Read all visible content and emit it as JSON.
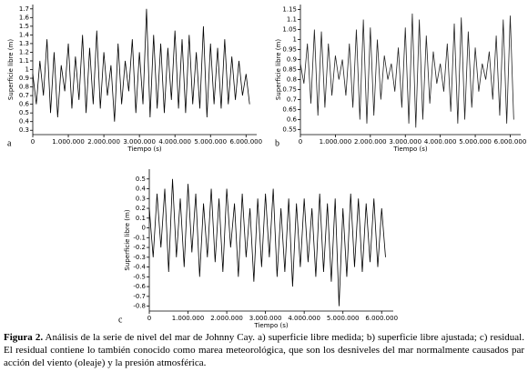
{
  "chart_data": [
    {
      "type": "line",
      "panel": "a",
      "xlabel": "Tiempo (s)",
      "ylabel": "Superficie libre (m)",
      "color": "#000000",
      "xlim": [
        0,
        6300000
      ],
      "ylim": [
        0.25,
        1.75
      ],
      "xticks": [
        0,
        {
          "value": 1000000,
          "label": "1.000.000"
        },
        {
          "value": 2000000,
          "label": "2.000.000"
        },
        {
          "value": 3000000,
          "label": "3.000.000"
        },
        {
          "value": 4000000,
          "label": "4.000.000"
        },
        {
          "value": 5000000,
          "label": "5.000.000"
        },
        {
          "value": 6000000,
          "label": "6.000.000"
        }
      ],
      "yticks": [
        0.3,
        0.4,
        0.5,
        0.6,
        0.7,
        0.8,
        0.9,
        1,
        1.1,
        1.2,
        1.3,
        1.4,
        1.5,
        1.6,
        1.7
      ],
      "x": [
        0,
        100000,
        200000,
        300000,
        400000,
        500000,
        600000,
        700000,
        800000,
        900000,
        1000000,
        1100000,
        1200000,
        1300000,
        1400000,
        1500000,
        1600000,
        1700000,
        1800000,
        1900000,
        2000000,
        2100000,
        2200000,
        2300000,
        2400000,
        2500000,
        2600000,
        2700000,
        2800000,
        2900000,
        3000000,
        3100000,
        3200000,
        3300000,
        3400000,
        3500000,
        3600000,
        3700000,
        3800000,
        3900000,
        4000000,
        4100000,
        4200000,
        4300000,
        4400000,
        4500000,
        4600000,
        4700000,
        4800000,
        4900000,
        5000000,
        5100000,
        5200000,
        5300000,
        5400000,
        5500000,
        5600000,
        5700000,
        5800000,
        5900000,
        6000000,
        6100000
      ],
      "values": [
        0.95,
        0.6,
        1.1,
        0.7,
        1.35,
        0.5,
        1.2,
        0.45,
        1.05,
        0.75,
        1.3,
        0.55,
        1.15,
        0.65,
        1.4,
        0.5,
        1.25,
        0.6,
        1.45,
        0.55,
        1.2,
        0.7,
        1.05,
        0.4,
        1.3,
        0.6,
        1.1,
        0.75,
        1.35,
        0.5,
        1.2,
        0.6,
        1.7,
        0.45,
        1.4,
        0.55,
        1.3,
        0.5,
        1.25,
        0.65,
        1.45,
        0.55,
        1.35,
        0.5,
        1.4,
        0.6,
        1.2,
        0.55,
        1.5,
        0.45,
        1.3,
        0.6,
        1.25,
        0.55,
        1.35,
        0.6,
        1.15,
        0.65,
        1.1,
        0.7,
        0.95,
        0.6
      ]
    },
    {
      "type": "line",
      "panel": "b",
      "xlabel": "Tiempo (s)",
      "ylabel": "Superficie libre (m)",
      "color": "#222222",
      "xlim": [
        0,
        6300000
      ],
      "ylim": [
        0.525,
        1.175
      ],
      "xticks": [
        0,
        {
          "value": 1000000,
          "label": "1.000.000"
        },
        {
          "value": 2000000,
          "label": "2.000.000"
        },
        {
          "value": 3000000,
          "label": "3.000.000"
        },
        {
          "value": 4000000,
          "label": "4.000.000"
        },
        {
          "value": 5000000,
          "label": "5.000.000"
        },
        {
          "value": 6000000,
          "label": "6.000.000"
        }
      ],
      "yticks": [
        0.55,
        0.6,
        0.65,
        0.7,
        0.75,
        0.8,
        0.85,
        0.9,
        0.95,
        1,
        1.05,
        1.1,
        1.15
      ],
      "x": [
        0,
        100000,
        200000,
        300000,
        400000,
        500000,
        600000,
        700000,
        800000,
        900000,
        1000000,
        1100000,
        1200000,
        1300000,
        1400000,
        1500000,
        1600000,
        1700000,
        1800000,
        1900000,
        2000000,
        2100000,
        2200000,
        2300000,
        2400000,
        2500000,
        2600000,
        2700000,
        2800000,
        2900000,
        3000000,
        3100000,
        3200000,
        3300000,
        3400000,
        3500000,
        3600000,
        3700000,
        3800000,
        3900000,
        4000000,
        4100000,
        4200000,
        4300000,
        4400000,
        4500000,
        4600000,
        4700000,
        4800000,
        4900000,
        5000000,
        5100000,
        5200000,
        5300000,
        5400000,
        5500000,
        5600000,
        5700000,
        5800000,
        5900000,
        6000000,
        6100000
      ],
      "values": [
        0.88,
        0.78,
        0.98,
        0.68,
        1.05,
        0.62,
        1.04,
        0.66,
        0.98,
        0.72,
        0.92,
        0.8,
        0.9,
        0.72,
        0.98,
        0.66,
        1.05,
        0.6,
        1.1,
        0.58,
        1.06,
        0.62,
        1.0,
        0.7,
        0.92,
        0.8,
        0.88,
        0.74,
        0.96,
        0.66,
        1.06,
        0.58,
        1.13,
        0.56,
        1.1,
        0.6,
        1.02,
        0.68,
        0.94,
        0.78,
        0.88,
        0.74,
        0.98,
        0.64,
        1.08,
        0.58,
        1.11,
        0.6,
        1.04,
        0.66,
        0.96,
        0.74,
        0.88,
        0.8,
        0.94,
        0.7,
        1.02,
        0.62,
        1.1,
        0.58,
        1.12,
        0.6
      ]
    },
    {
      "type": "line",
      "panel": "c",
      "xlabel": "Tiempo (s)",
      "ylabel": "Superficie libre (m)",
      "color": "#000000",
      "xlim": [
        0,
        6300000
      ],
      "ylim": [
        -0.85,
        0.6
      ],
      "xticks": [
        0,
        {
          "value": 1000000,
          "label": "1.000.000"
        },
        {
          "value": 2000000,
          "label": "2.000.000"
        },
        {
          "value": 3000000,
          "label": "3.000.000"
        },
        {
          "value": 4000000,
          "label": "4.000.000"
        },
        {
          "value": 5000000,
          "label": "5.000.000"
        },
        {
          "value": 6000000,
          "label": "6.000.000"
        }
      ],
      "yticks": [
        -0.8,
        -0.7,
        -0.6,
        -0.5,
        -0.4,
        -0.3,
        -0.2,
        -0.1,
        0,
        0.1,
        0.2,
        0.3,
        0.4,
        0.5
      ],
      "x": [
        0,
        100000,
        200000,
        300000,
        400000,
        500000,
        600000,
        700000,
        800000,
        900000,
        1000000,
        1100000,
        1200000,
        1300000,
        1400000,
        1500000,
        1600000,
        1700000,
        1800000,
        1900000,
        2000000,
        2100000,
        2200000,
        2300000,
        2400000,
        2500000,
        2600000,
        2700000,
        2800000,
        2900000,
        3000000,
        3100000,
        3200000,
        3300000,
        3400000,
        3500000,
        3600000,
        3700000,
        3800000,
        3900000,
        4000000,
        4100000,
        4200000,
        4300000,
        4400000,
        4500000,
        4600000,
        4700000,
        4800000,
        4900000,
        5000000,
        5100000,
        5200000,
        5300000,
        5400000,
        5500000,
        5600000,
        5700000,
        5800000,
        5900000,
        6000000,
        6100000
      ],
      "values": [
        0.2,
        -0.3,
        0.35,
        -0.2,
        0.4,
        -0.45,
        0.5,
        -0.3,
        0.3,
        -0.4,
        0.45,
        -0.25,
        0.35,
        -0.5,
        0.25,
        -0.3,
        0.4,
        -0.35,
        0.3,
        -0.45,
        0.4,
        -0.2,
        0.25,
        -0.5,
        0.35,
        -0.3,
        0.2,
        -0.55,
        0.3,
        -0.4,
        0.35,
        -0.3,
        0.4,
        -0.5,
        0.2,
        -0.45,
        0.3,
        -0.6,
        0.25,
        -0.4,
        0.3,
        -0.35,
        0.2,
        -0.5,
        0.35,
        -0.45,
        0.25,
        -0.55,
        0.3,
        -0.8,
        0.2,
        -0.5,
        0.35,
        -0.4,
        0.3,
        -0.45,
        0.25,
        -0.35,
        0.3,
        -0.4,
        0.2,
        -0.3
      ]
    }
  ],
  "caption": {
    "label": "Figura 2.",
    "text": "Análisis de la serie de nivel del mar de Johnny Cay. a) superficie libre medida; b) superficie libre ajustada; c) residual. El residual contiene lo también conocido como marea meteorológica, que son los desniveles del mar normalmente causados par acción del viento (oleaje) y la presión atmosférica."
  }
}
